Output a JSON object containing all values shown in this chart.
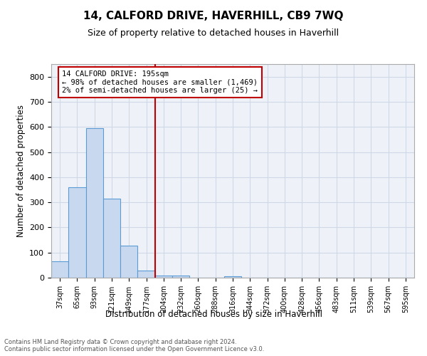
{
  "title": "14, CALFORD DRIVE, HAVERHILL, CB9 7WQ",
  "subtitle": "Size of property relative to detached houses in Haverhill",
  "xlabel": "Distribution of detached houses by size in Haverhill",
  "ylabel": "Number of detached properties",
  "footer_line1": "Contains HM Land Registry data © Crown copyright and database right 2024.",
  "footer_line2": "Contains public sector information licensed under the Open Government Licence v3.0.",
  "categories": [
    "37sqm",
    "65sqm",
    "93sqm",
    "121sqm",
    "149sqm",
    "177sqm",
    "204sqm",
    "232sqm",
    "260sqm",
    "288sqm",
    "316sqm",
    "344sqm",
    "372sqm",
    "400sqm",
    "428sqm",
    "456sqm",
    "483sqm",
    "511sqm",
    "539sqm",
    "567sqm",
    "595sqm"
  ],
  "values": [
    65,
    360,
    595,
    315,
    128,
    27,
    9,
    8,
    0,
    0,
    7,
    0,
    0,
    0,
    0,
    0,
    0,
    0,
    0,
    0,
    0
  ],
  "bar_color": "#c8d9ef",
  "bar_edge_color": "#5b9bd5",
  "grid_color": "#d0d8e8",
  "background_color": "#eef2f8",
  "vline_x": 5.5,
  "vline_color": "#c00000",
  "annotation_line1": "14 CALFORD DRIVE: 195sqm",
  "annotation_line2": "← 98% of detached houses are smaller (1,469)",
  "annotation_line3": "2% of semi-detached houses are larger (25) →",
  "annotation_box_color": "#c00000",
  "ylim": [
    0,
    850
  ],
  "yticks": [
    0,
    100,
    200,
    300,
    400,
    500,
    600,
    700,
    800
  ]
}
